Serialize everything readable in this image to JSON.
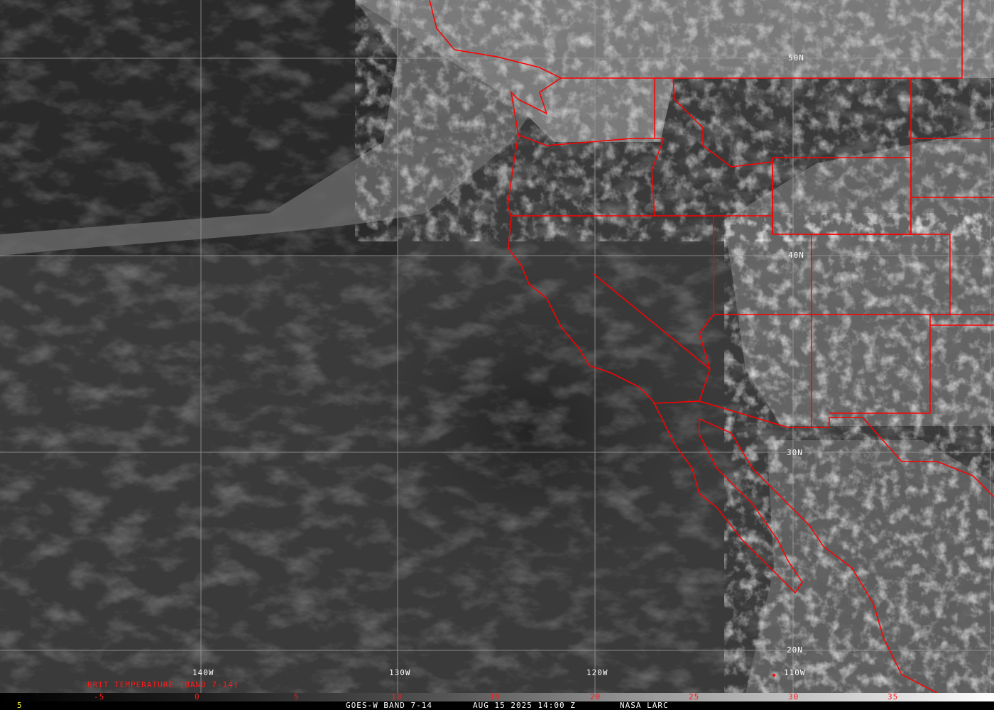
{
  "title": "BRIT TEMPERATURE (BAND 7-14)",
  "footer": {
    "left_value": "5",
    "satellite": "GOES-W BAND 7-14",
    "datetime": "AUG 15 2025 14:00 Z",
    "source": "NASA LARC"
  },
  "colorbar": {
    "ticks": [
      "-5",
      "0",
      "5",
      "10",
      "15",
      "20",
      "25",
      "30",
      "35"
    ]
  },
  "longitude_labels": [
    "140W",
    "130W",
    "120W",
    "110W"
  ],
  "latitude_labels": [
    "50N",
    "40N",
    "30N",
    "20N"
  ],
  "colors": {
    "borders": "#ff0000",
    "grid": "#9a9a9a",
    "labels_red": "#ff1a1a",
    "labels_white": "#ffffff"
  }
}
